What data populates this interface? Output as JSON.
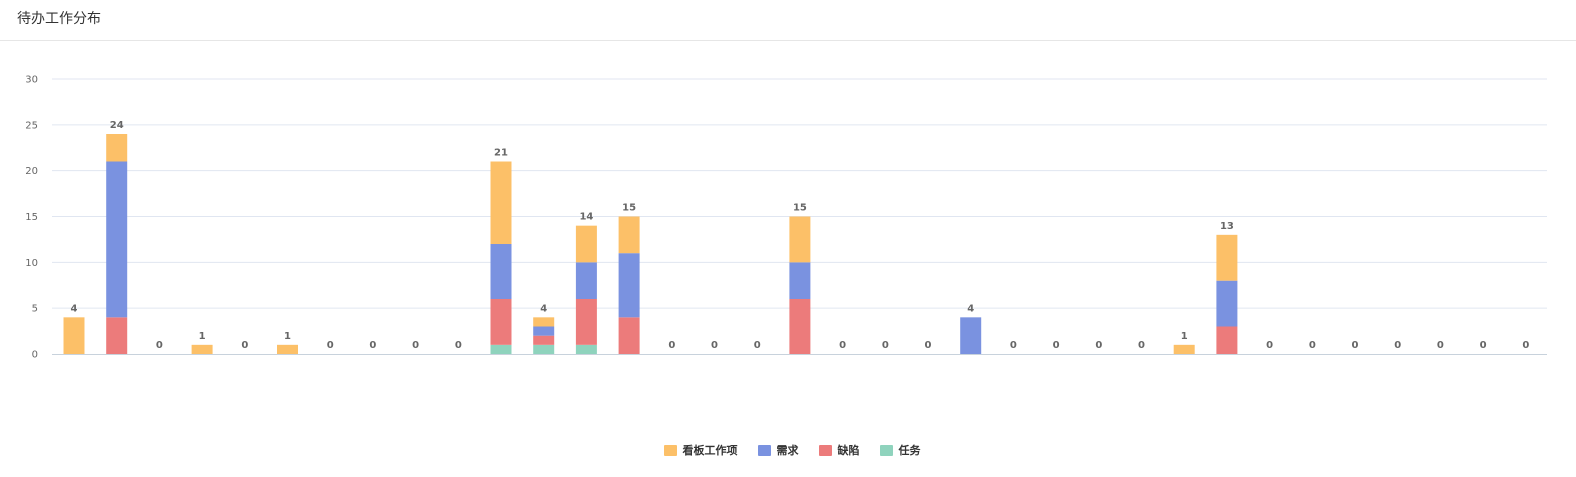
{
  "panel": {
    "title": "待办工作分布"
  },
  "chart_data": {
    "type": "bar",
    "stacked": true,
    "ylim": [
      0,
      30
    ],
    "yticks": [
      0,
      5,
      10,
      15,
      20,
      25,
      30
    ],
    "grid": true,
    "legend_position": "bottom-center",
    "categories_count": 35,
    "series": [
      {
        "name": "看板工作项",
        "color": "#fcc068",
        "values": [
          4,
          3,
          0,
          1,
          0,
          1,
          0,
          0,
          0,
          0,
          9,
          1,
          4,
          4,
          0,
          0,
          0,
          5,
          0,
          0,
          0,
          0,
          0,
          0,
          0,
          0,
          1,
          5,
          0,
          0,
          0,
          0,
          0,
          0,
          0
        ]
      },
      {
        "name": "需求",
        "color": "#7a92e0",
        "values": [
          0,
          17,
          0,
          0,
          0,
          0,
          0,
          0,
          0,
          0,
          6,
          1,
          4,
          7,
          0,
          0,
          0,
          4,
          0,
          0,
          0,
          4,
          0,
          0,
          0,
          0,
          0,
          5,
          0,
          0,
          0,
          0,
          0,
          0,
          0
        ]
      },
      {
        "name": "缺陷",
        "color": "#ec7b7b",
        "values": [
          0,
          4,
          0,
          0,
          0,
          0,
          0,
          0,
          0,
          0,
          5,
          1,
          5,
          4,
          0,
          0,
          0,
          6,
          0,
          0,
          0,
          0,
          0,
          0,
          0,
          0,
          0,
          3,
          0,
          0,
          0,
          0,
          0,
          0,
          0
        ]
      },
      {
        "name": "任务",
        "color": "#8fd3bd",
        "values": [
          0,
          0,
          0,
          0,
          0,
          0,
          0,
          0,
          0,
          0,
          1,
          1,
          1,
          0,
          0,
          0,
          0,
          0,
          0,
          0,
          0,
          0,
          0,
          0,
          0,
          0,
          0,
          0,
          0,
          0,
          0,
          0,
          0,
          0,
          0
        ]
      }
    ],
    "totals": [
      4,
      24,
      0,
      1,
      0,
      1,
      0,
      0,
      0,
      0,
      21,
      4,
      14,
      15,
      0,
      0,
      0,
      15,
      0,
      0,
      0,
      4,
      0,
      0,
      0,
      0,
      1,
      13,
      0,
      0,
      0,
      0,
      0,
      0,
      0
    ]
  }
}
